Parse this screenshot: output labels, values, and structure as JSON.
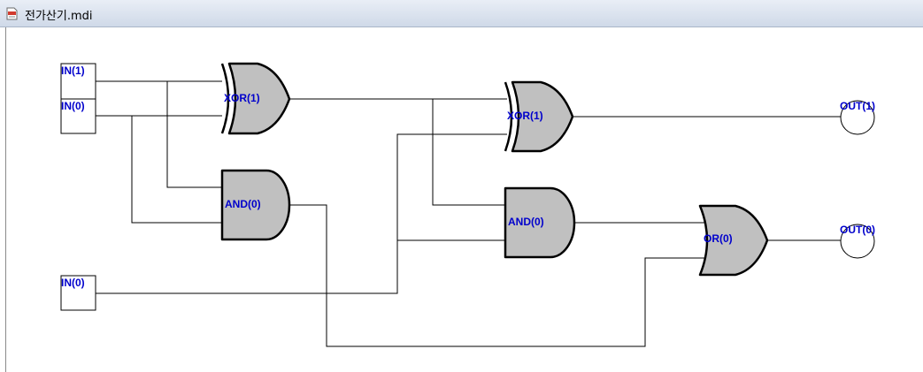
{
  "window": {
    "title": "전가산기.mdi",
    "icon": "doc-icon"
  },
  "diagram": {
    "inputs": [
      {
        "id": "in-a",
        "label": "IN(1)"
      },
      {
        "id": "in-b",
        "label": "IN(0)"
      },
      {
        "id": "in-c",
        "label": "IN(0)"
      }
    ],
    "gates": [
      {
        "id": "xor-1",
        "type": "XOR",
        "label": "XOR(1)"
      },
      {
        "id": "and-1",
        "type": "AND",
        "label": "AND(0)"
      },
      {
        "id": "xor-2",
        "type": "XOR",
        "label": "XOR(1)"
      },
      {
        "id": "and-2",
        "type": "AND",
        "label": "AND(0)"
      },
      {
        "id": "or-1",
        "type": "OR",
        "label": "OR(0)"
      }
    ],
    "outputs": [
      {
        "id": "out-sum",
        "label": "OUT(1)"
      },
      {
        "id": "out-carry",
        "label": "OUT(0)"
      }
    ]
  }
}
